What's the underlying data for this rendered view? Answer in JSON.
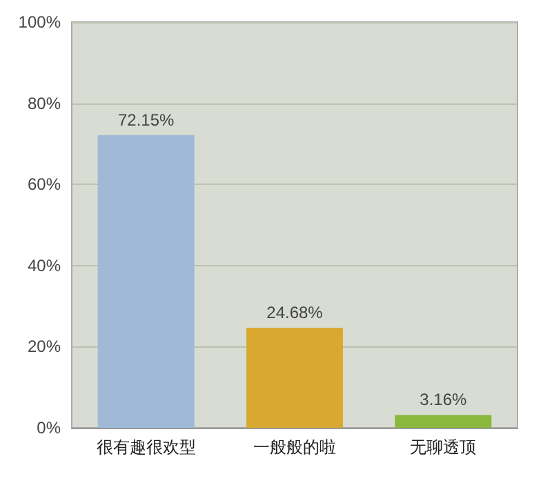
{
  "chart_data": {
    "type": "bar",
    "categories": [
      "很有趣很欢型",
      "一般般的啦",
      "无聊透顶"
    ],
    "values": [
      72.15,
      24.68,
      3.16
    ],
    "value_labels": [
      "72.15%",
      "24.68%",
      "3.16%"
    ],
    "colors": [
      "#9fb9d6",
      "#d9a830",
      "#8ab83c"
    ],
    "ylim": [
      0,
      100
    ],
    "yticks": [
      {
        "value": 0,
        "label": "0%"
      },
      {
        "value": 20,
        "label": "20%"
      },
      {
        "value": 40,
        "label": "40%"
      },
      {
        "value": 60,
        "label": "60%"
      },
      {
        "value": 80,
        "label": "80%"
      },
      {
        "value": 100,
        "label": "100%"
      }
    ],
    "grid": "y"
  }
}
